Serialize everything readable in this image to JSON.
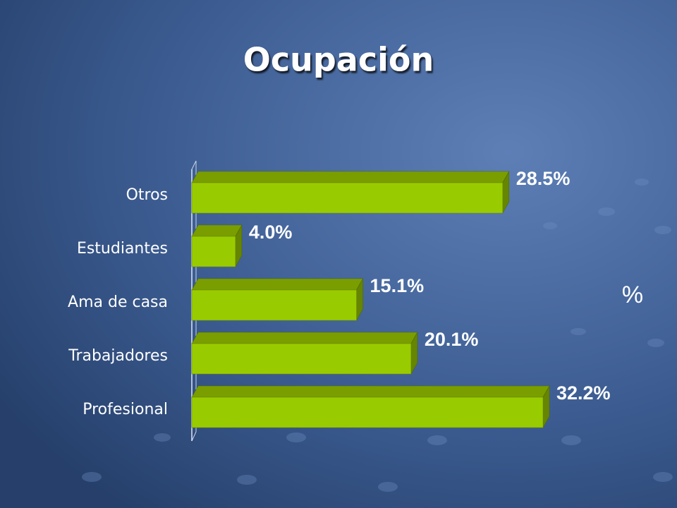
{
  "chart_data": {
    "type": "bar",
    "orientation": "horizontal",
    "title": "Ocupación",
    "categories": [
      "Otros",
      "Estudiantes",
      "Ama de casa",
      "Trabajadores",
      "Profesional"
    ],
    "values": [
      28.5,
      4.0,
      15.1,
      20.1,
      32.2
    ],
    "value_labels": [
      "28.5%",
      "4.0%",
      "15.1%",
      "20.1%",
      "32.2%"
    ],
    "x_label": "%",
    "color": "#99cc00"
  }
}
